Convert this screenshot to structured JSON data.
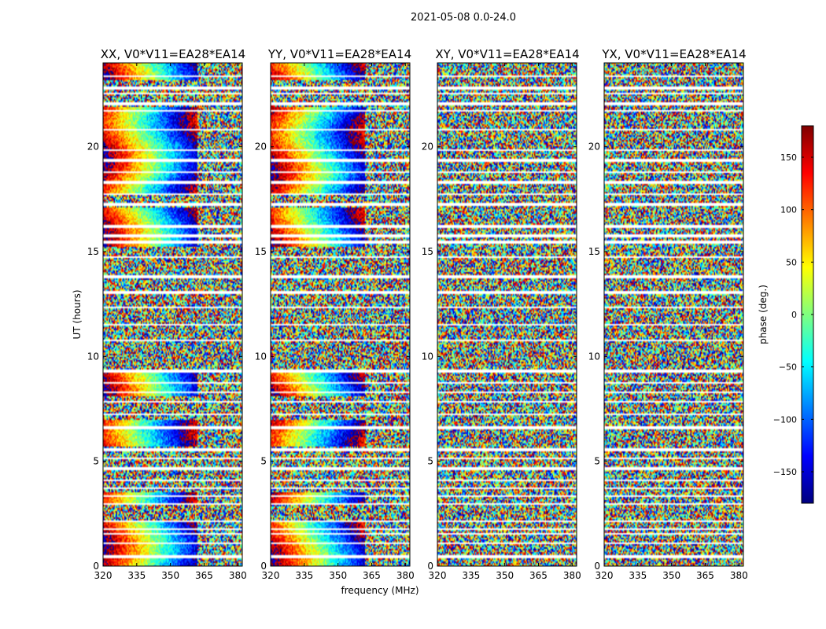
{
  "chart_data": {
    "type": "heatmap",
    "title": "2021-05-08 0.0-24.0",
    "xlabel": "frequency (MHz)",
    "ylabel": "UT (hours)",
    "xlim": [
      320,
      382
    ],
    "ylim": [
      0,
      24
    ],
    "xticks": [
      "320",
      "335",
      "350",
      "365",
      "380"
    ],
    "yticks": [
      "0",
      "5",
      "10",
      "15",
      "20"
    ],
    "panels": [
      {
        "title": "XX, V0*V11=EA28*EA14",
        "pattern": "parallel"
      },
      {
        "title": "YY, V0*V11=EA28*EA14",
        "pattern": "parallel"
      },
      {
        "title": "XY, V0*V11=EA28*EA14",
        "pattern": "cross"
      },
      {
        "title": "YX, V0*V11=EA28*EA14",
        "pattern": "cross"
      }
    ],
    "colorbar": {
      "label": "phase (deg.)",
      "range": [
        -180,
        180
      ],
      "ticks": [
        "150",
        "100",
        "50",
        "0",
        "−50",
        "−100",
        "−150"
      ],
      "colormap": [
        "#00007f",
        "#0000ff",
        "#007fff",
        "#00ffff",
        "#7fff7f",
        "#ffff00",
        "#ff7f00",
        "#ff0000",
        "#7f0000"
      ]
    },
    "flagged_hours": [
      0.45,
      1.1,
      1.55,
      1.75,
      2.15,
      2.95,
      3.35,
      3.7,
      4.1,
      4.65,
      5.15,
      5.55,
      6.6,
      7.25,
      7.85,
      8.3,
      8.75,
      9.3,
      10.75,
      11.5,
      12.35,
      13.05,
      13.8,
      14.75,
      15.45,
      15.75,
      16.2,
      17.25,
      17.75,
      18.3,
      18.8,
      19.35,
      19.85,
      20.8,
      21.7,
      22.05,
      22.55,
      22.8,
      23.35
    ]
  }
}
